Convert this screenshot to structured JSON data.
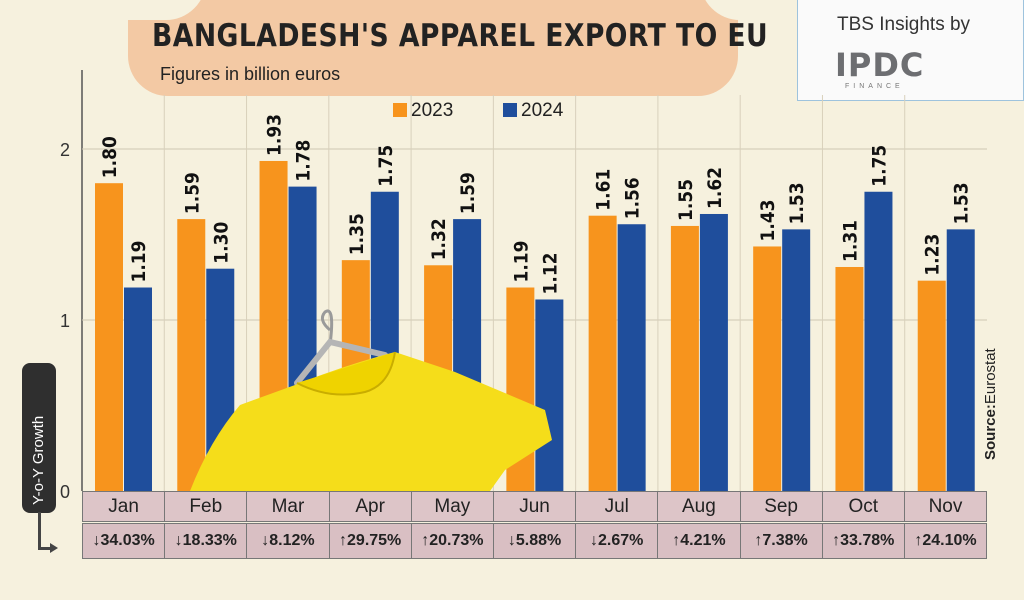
{
  "header": {
    "title": "BANGLADESH'S APPAREL EXPORT TO EU",
    "subtitle": "Figures in billion euros"
  },
  "branding": {
    "top_text": "TBS Insights by",
    "logo_word": "IPDC",
    "logo_sub": "FINANCE"
  },
  "source": {
    "label": "Source:",
    "value": "Eurostat"
  },
  "yoy_label": "Y-o-Y Growth",
  "colors": {
    "2023": "#f7941d",
    "2024": "#1f4e9c",
    "background": "#f6f1de"
  },
  "chart_data": {
    "type": "bar",
    "title": "BANGLADESH'S APPAREL EXPORT TO EU",
    "subtitle": "Figures in billion euros",
    "categories": [
      "Jan",
      "Feb",
      "Mar",
      "Apr",
      "May",
      "Jun",
      "Jul",
      "Aug",
      "Sep",
      "Oct",
      "Nov"
    ],
    "series": [
      {
        "name": "2023",
        "values": [
          1.8,
          1.59,
          1.93,
          1.35,
          1.32,
          1.19,
          1.61,
          1.55,
          1.43,
          1.31,
          1.23
        ],
        "labels": [
          "1.80",
          "1.59",
          "1.93",
          "1.35",
          "1.32",
          "1.19",
          "1.61",
          "1.55",
          "1.43",
          "1.31",
          "1.23"
        ]
      },
      {
        "name": "2024",
        "values": [
          1.19,
          1.3,
          1.78,
          1.75,
          1.59,
          1.12,
          1.56,
          1.62,
          1.53,
          1.75,
          1.53
        ],
        "labels": [
          "1.19",
          "1.30",
          "1.78",
          "1.75",
          "1.59",
          "1.12",
          "1.56",
          "1.62",
          "1.53",
          "1.75",
          "1.53"
        ]
      }
    ],
    "yticks": [
      "0",
      "1",
      "2"
    ],
    "ylim": [
      0,
      2.4
    ],
    "grid": true,
    "legend": "top-center",
    "yoy_growth": [
      "↓34.03%",
      "↓18.33%",
      "↓8.12%",
      "↑29.75%",
      "↑20.73%",
      "↓5.88%",
      "↓2.67%",
      "↑4.21%",
      "↑7.38%",
      "↑33.78%",
      "↑24.10%"
    ]
  }
}
